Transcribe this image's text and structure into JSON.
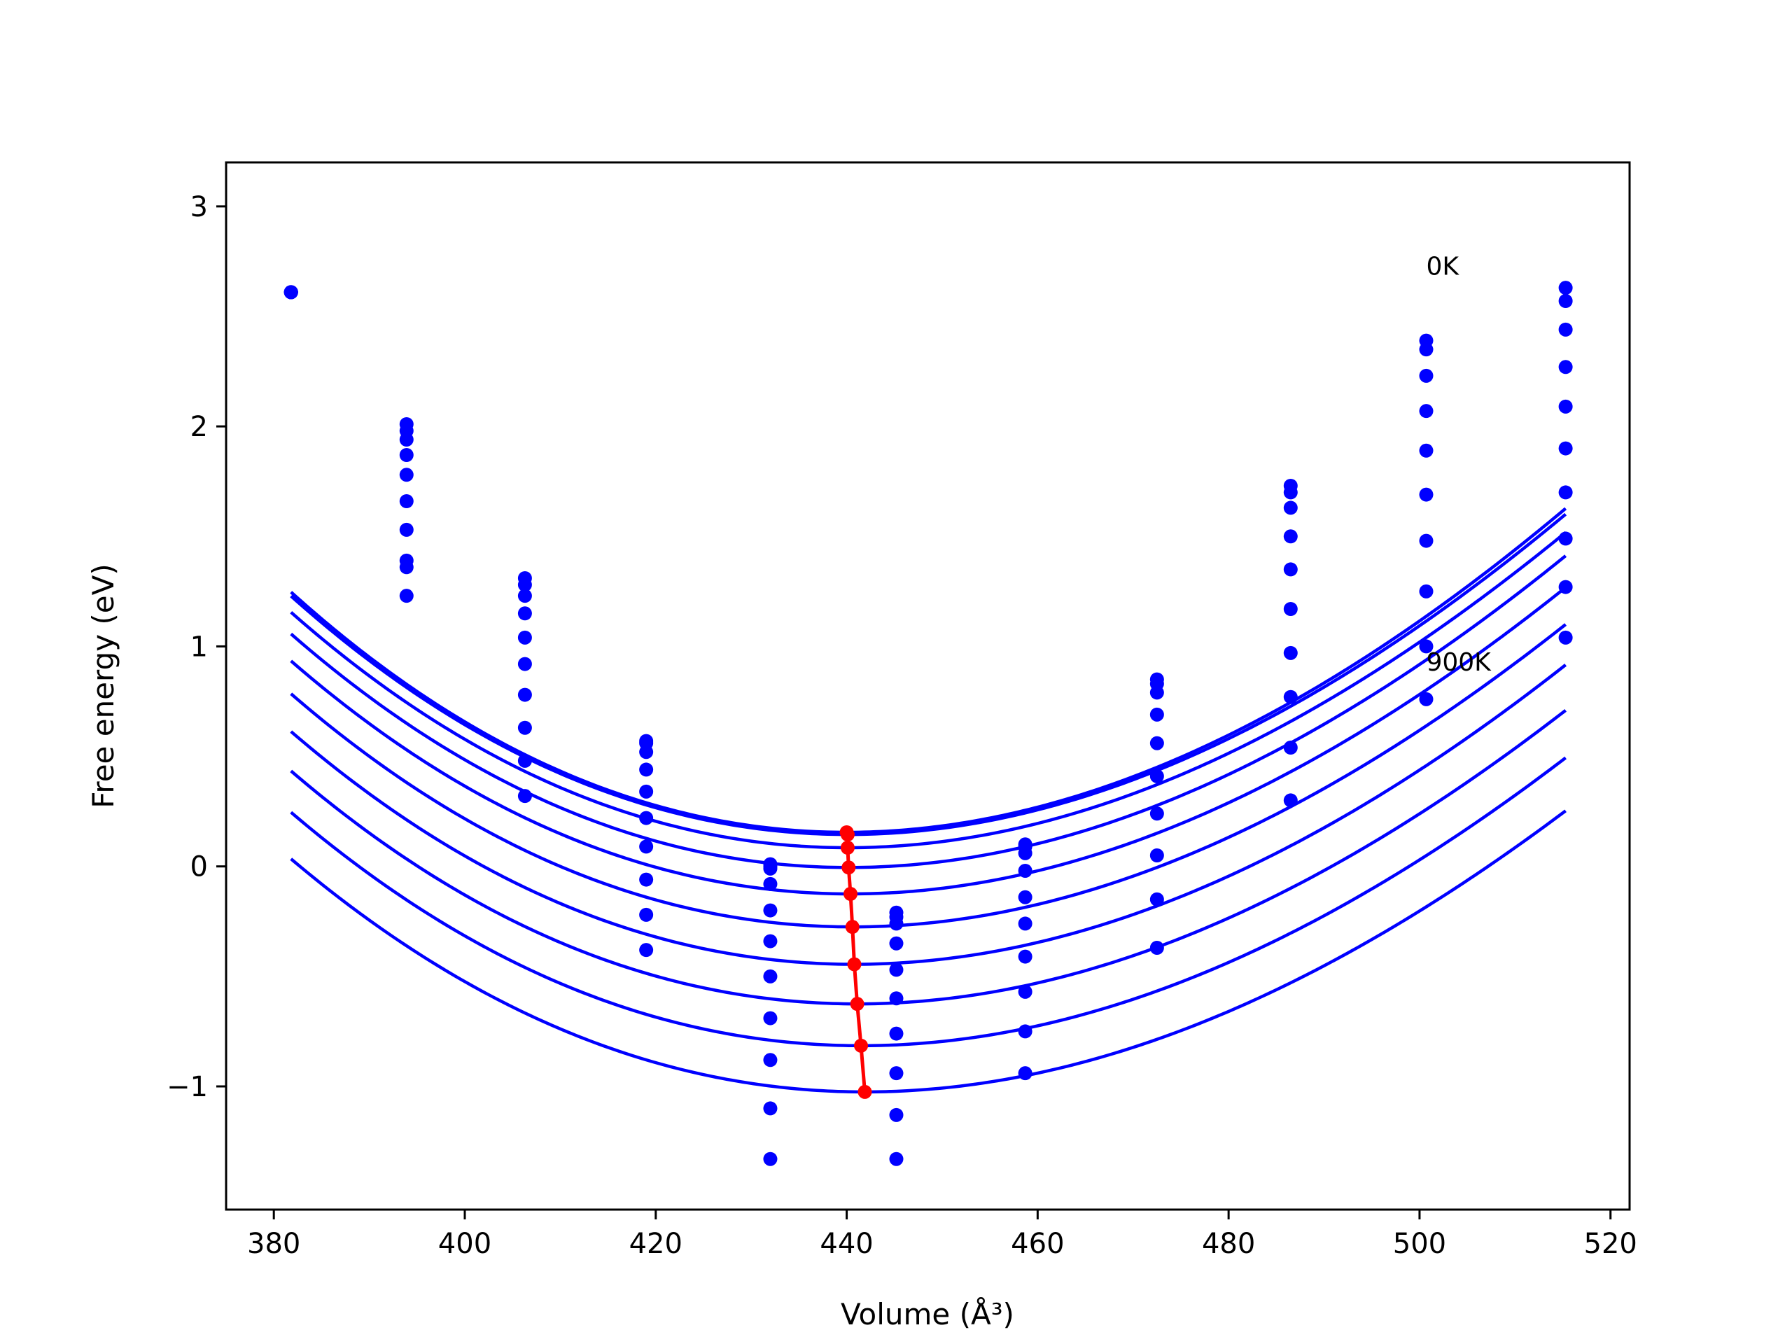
{
  "chart_data": {
    "type": "scatter",
    "xlabel": "Volume (Å³)",
    "ylabel": "Free energy (eV)",
    "xlim": [
      375,
      522
    ],
    "ylim": [
      -1.56,
      3.2
    ],
    "xticks": [
      380,
      400,
      420,
      440,
      460,
      480,
      500,
      520
    ],
    "yticks": [
      -1,
      0,
      1,
      2,
      3
    ],
    "grid": false,
    "colors": {
      "points": "#0000ff",
      "curves": "#0000ff",
      "minimum_line": "#ff0000"
    },
    "volumes": [
      381.8,
      393.9,
      406.3,
      419.0,
      432.0,
      445.2,
      458.7,
      472.5,
      486.5,
      500.7,
      515.3
    ],
    "series": [
      {
        "name": "0K",
        "values": [
          2.61,
          2.01,
          1.31,
          0.57,
          0.01,
          -0.21,
          0.1,
          0.85,
          1.73,
          2.39,
          2.63
        ]
      },
      {
        "values": [
          2.61,
          1.98,
          1.28,
          0.56,
          0.0,
          -0.23,
          0.09,
          0.83,
          1.7,
          2.35,
          2.57
        ]
      },
      {
        "values": [
          2.61,
          1.94,
          1.23,
          0.52,
          -0.01,
          -0.26,
          0.06,
          0.79,
          1.63,
          2.23,
          2.44
        ]
      },
      {
        "values": [
          2.61,
          1.87,
          1.15,
          0.44,
          -0.08,
          -0.35,
          -0.02,
          0.69,
          1.5,
          2.07,
          2.27
        ]
      },
      {
        "values": [
          2.61,
          1.78,
          1.04,
          0.34,
          -0.2,
          -0.47,
          -0.14,
          0.56,
          1.35,
          1.89,
          2.09
        ]
      },
      {
        "values": [
          2.61,
          1.66,
          0.92,
          0.22,
          -0.34,
          -0.6,
          -0.26,
          0.41,
          1.17,
          1.69,
          1.9
        ]
      },
      {
        "values": [
          2.61,
          1.53,
          0.78,
          0.09,
          -0.5,
          -0.76,
          -0.41,
          0.24,
          0.97,
          1.48,
          1.7
        ]
      },
      {
        "values": [
          2.61,
          1.39,
          0.63,
          -0.06,
          -0.69,
          -0.94,
          -0.57,
          0.05,
          0.77,
          1.25,
          1.49
        ]
      },
      {
        "values": [
          2.61,
          1.36,
          0.48,
          -0.22,
          -0.88,
          -1.13,
          -0.75,
          -0.15,
          0.54,
          1.0,
          1.27
        ]
      },
      {
        "name": "900K",
        "values": [
          2.61,
          1.23,
          0.32,
          -0.38,
          -1.1,
          -1.33,
          -0.94,
          -0.37,
          0.3,
          0.76,
          1.04
        ]
      }
    ],
    "extra_points": [
      {
        "x": 432.0,
        "y": -1.33
      }
    ],
    "fits": [
      {
        "v0": 440.0,
        "e0": 0.155,
        "a": 0.000295,
        "b": -4.7e-07
      },
      {
        "v0": 440.1,
        "e0": 0.145,
        "a": 0.000292,
        "b": -4.6e-07
      },
      {
        "v0": 440.1,
        "e0": 0.085,
        "a": 0.000288,
        "b": -4.6e-07
      },
      {
        "v0": 440.2,
        "e0": -0.005,
        "a": 0.000285,
        "b": -4.5e-07
      },
      {
        "v0": 440.4,
        "e0": -0.125,
        "a": 0.000282,
        "b": -4.5e-07
      },
      {
        "v0": 440.6,
        "e0": -0.275,
        "a": 0.00028,
        "b": -4.5e-07
      },
      {
        "v0": 440.8,
        "e0": -0.445,
        "a": 0.000278,
        "b": -4.4e-07
      },
      {
        "v0": 441.1,
        "e0": -0.625,
        "a": 0.000275,
        "b": -4.4e-07
      },
      {
        "v0": 441.5,
        "e0": -0.815,
        "a": 0.000272,
        "b": -4.3e-07
      },
      {
        "v0": 441.9,
        "e0": -1.025,
        "a": 0.000268,
        "b": -4.2e-07
      }
    ],
    "fit_range": [
      381.8,
      515.3
    ],
    "minimum_line": {
      "x": [
        440.0,
        440.1,
        440.1,
        440.2,
        440.4,
        440.6,
        440.8,
        441.1,
        441.5,
        441.9
      ],
      "y": [
        0.155,
        0.145,
        0.085,
        -0.005,
        -0.125,
        -0.275,
        -0.445,
        -0.625,
        -0.815,
        -1.025
      ]
    },
    "annotations": [
      {
        "text": "0K",
        "x": 500.7,
        "y": 2.69
      },
      {
        "text": "900K",
        "x": 500.7,
        "y": 0.89
      }
    ]
  }
}
